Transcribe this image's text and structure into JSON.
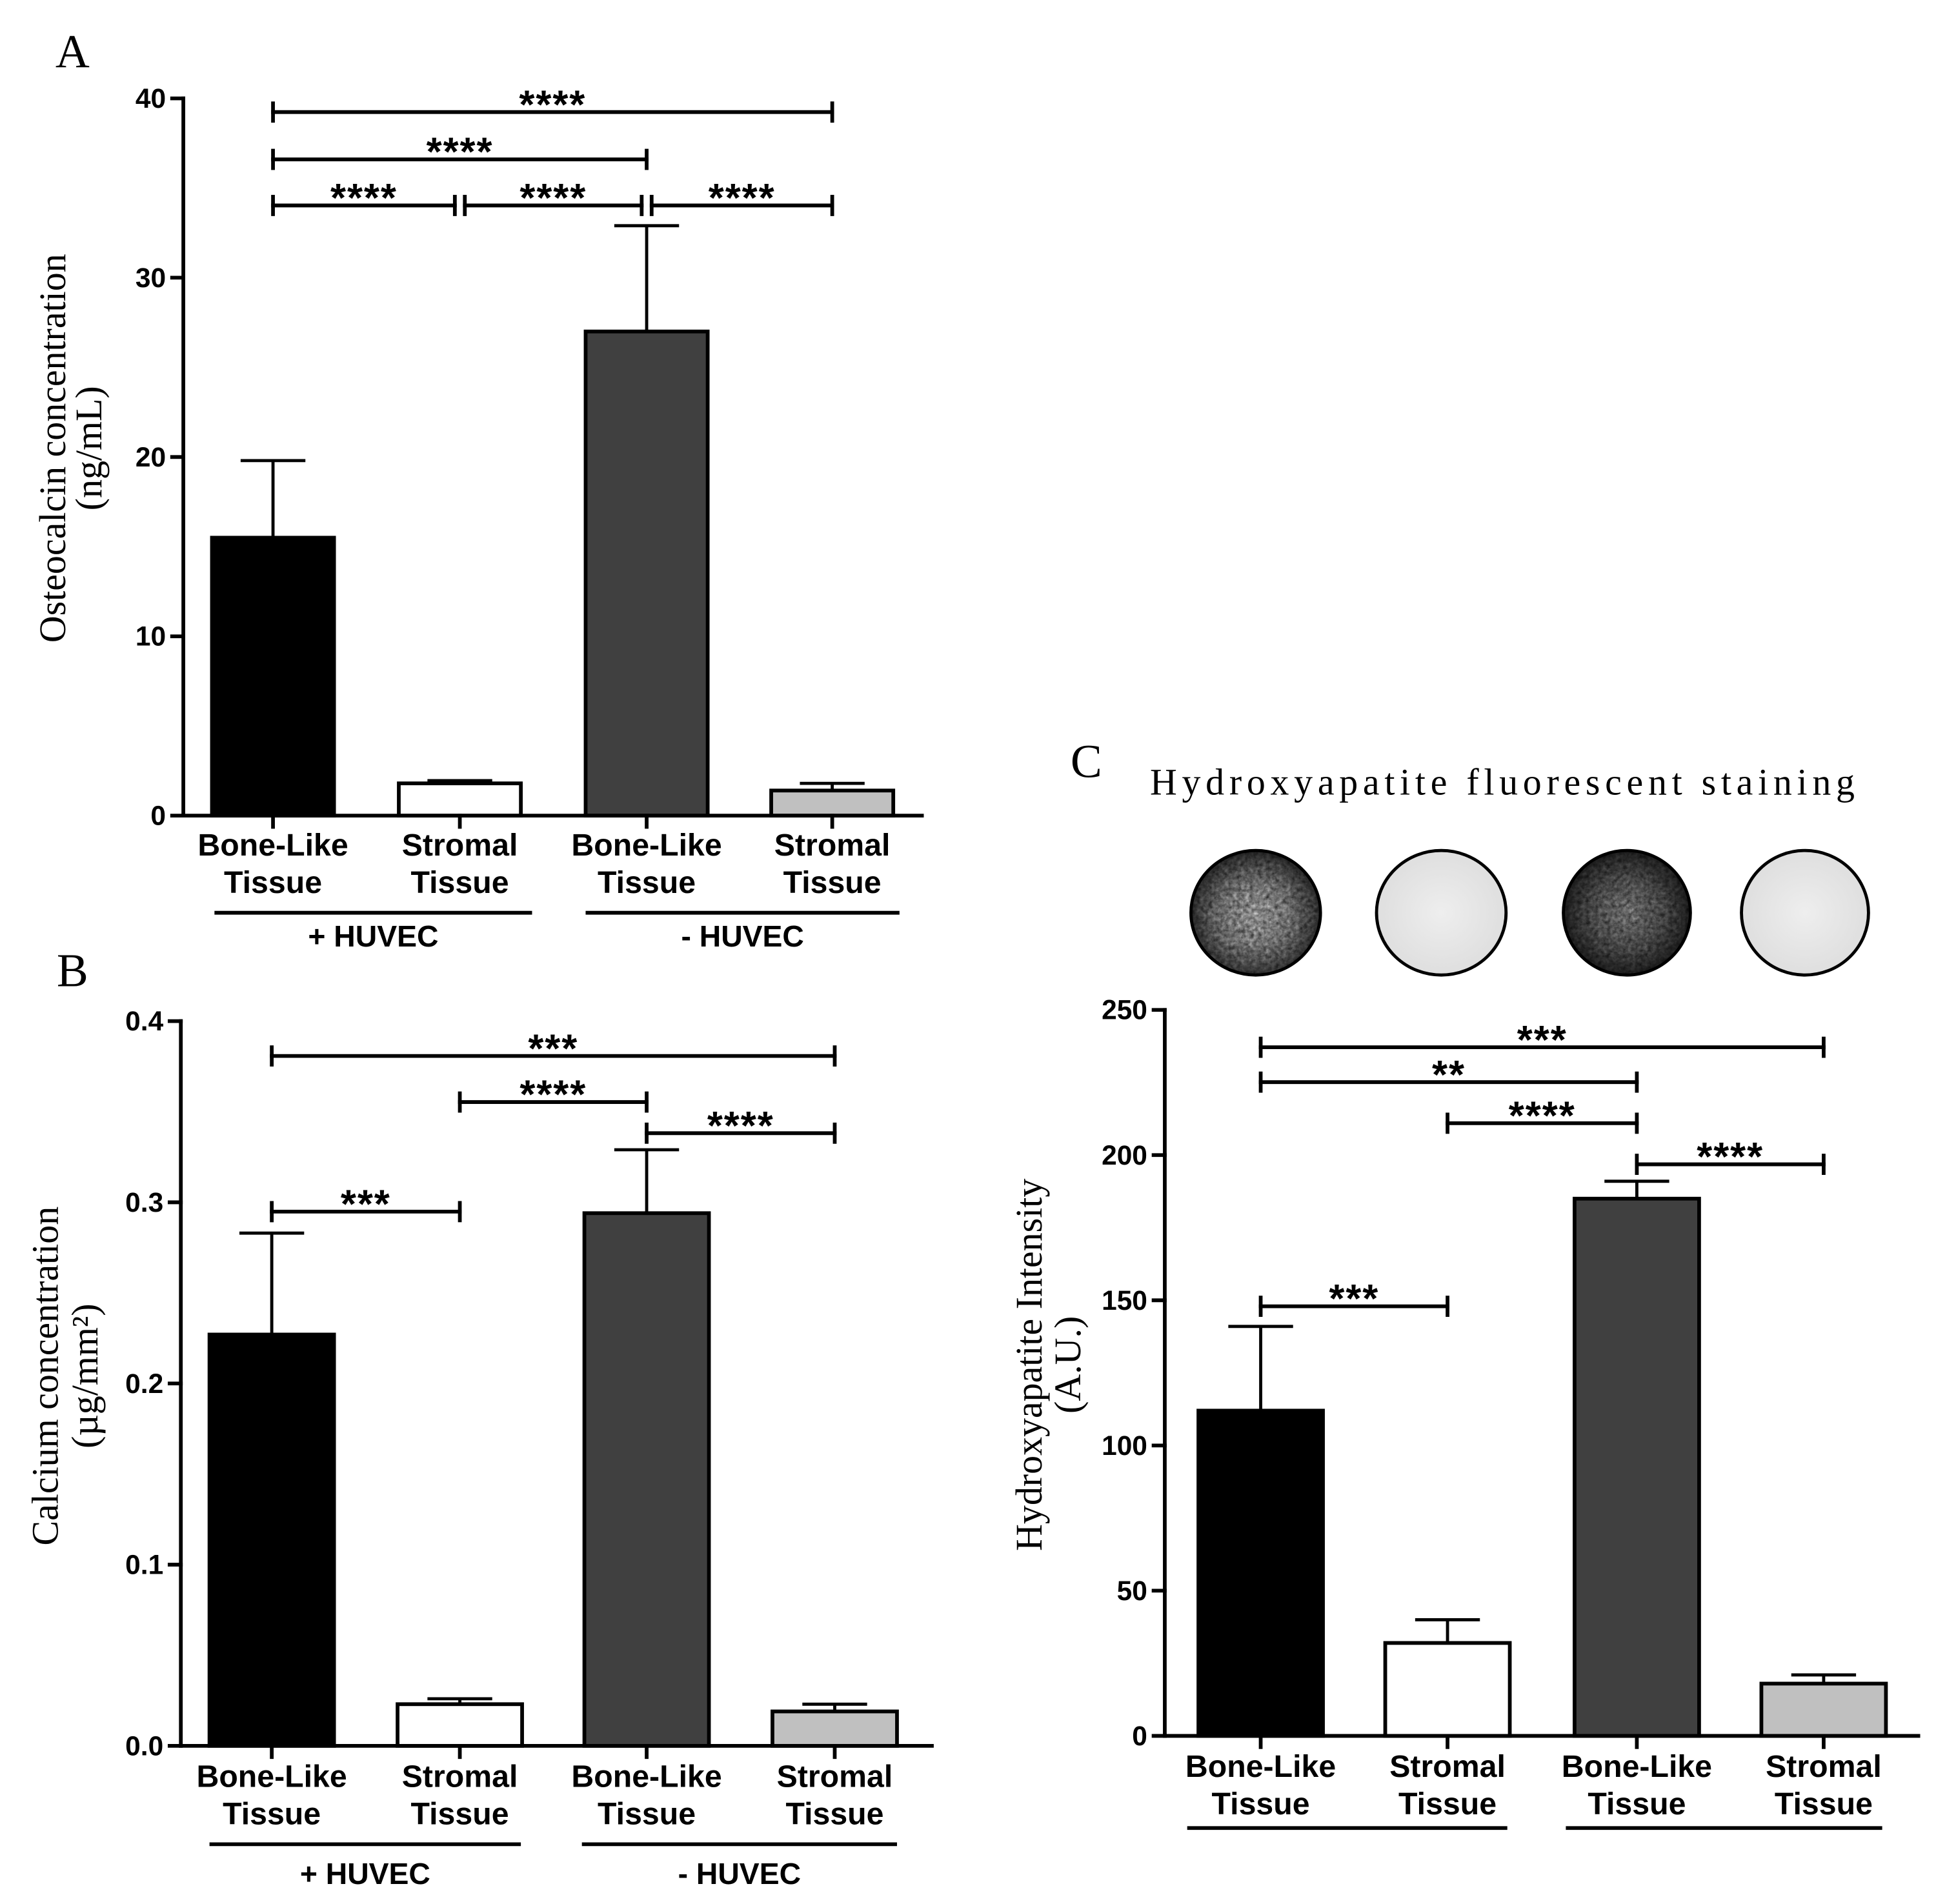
{
  "chart_data": [
    {
      "panel": "A",
      "type": "bar",
      "ylabel": [
        "Osteocalcin concentration",
        "(ng/mL)"
      ],
      "ylim": [
        0,
        40
      ],
      "yticks": [
        0,
        10,
        20,
        30,
        40
      ],
      "ytick_labels": [
        "0",
        "10",
        "20",
        "30",
        "40"
      ],
      "categories": [
        [
          "Bone-Like",
          "Tissue"
        ],
        [
          "Stromal",
          "Tissue"
        ],
        [
          "Bone-Like",
          "Tissue"
        ],
        [
          "Stromal",
          "Tissue"
        ]
      ],
      "values": [
        15.5,
        1.8,
        27.0,
        1.4
      ],
      "errors": [
        4.3,
        0.15,
        5.9,
        0.4
      ],
      "colors": [
        "#000000",
        "#ffffff",
        "#404040",
        "#c0c0c0"
      ],
      "groups": [
        {
          "label": "+ HUVEC",
          "bars": [
            0,
            1
          ]
        },
        {
          "label": "- HUVEC",
          "bars": [
            2,
            3
          ]
        }
      ],
      "significance": [
        {
          "from": 0,
          "to": 3,
          "label": "****"
        },
        {
          "from": 0,
          "to": 2,
          "label": "****"
        },
        {
          "from": 0,
          "to": 1,
          "label": "****"
        },
        {
          "from": 1,
          "to": 2,
          "label": "****"
        },
        {
          "from": 2,
          "to": 3,
          "label": "****"
        }
      ]
    },
    {
      "panel": "B",
      "type": "bar",
      "ylabel": [
        "Calcium concentration",
        "(µg/mm²)"
      ],
      "ylim": [
        0,
        0.4
      ],
      "yticks": [
        0,
        0.1,
        0.2,
        0.3,
        0.4
      ],
      "ytick_labels": [
        "0.0",
        "0.1",
        "0.2",
        "0.3",
        "0.4"
      ],
      "categories": [
        [
          "Bone-Like",
          "Tissue"
        ],
        [
          "Stromal",
          "Tissue"
        ],
        [
          "Bone-Like",
          "Tissue"
        ],
        [
          "Stromal",
          "Tissue"
        ]
      ],
      "values": [
        0.227,
        0.023,
        0.294,
        0.019
      ],
      "errors": [
        0.056,
        0.003,
        0.035,
        0.004
      ],
      "colors": [
        "#000000",
        "#ffffff",
        "#404040",
        "#c0c0c0"
      ],
      "groups": [
        {
          "label": "+ HUVEC",
          "bars": [
            0,
            1
          ]
        },
        {
          "label": "- HUVEC",
          "bars": [
            2,
            3
          ]
        }
      ],
      "significance": [
        {
          "from": 0,
          "to": 3,
          "label": "***"
        },
        {
          "from": 1,
          "to": 2,
          "label": "****"
        },
        {
          "from": 2,
          "to": 3,
          "label": "****"
        },
        {
          "from": 0,
          "to": 1,
          "label": "***"
        }
      ]
    },
    {
      "panel": "C",
      "type": "bar",
      "title": "Hydroxyapatite fluorescent staining",
      "ylabel": [
        "Hydroxyapatite Intensity",
        "(A.U.)"
      ],
      "ylim": [
        0,
        250
      ],
      "yticks": [
        0,
        50,
        100,
        150,
        200,
        250
      ],
      "ytick_labels": [
        "0",
        "50",
        "100",
        "150",
        "200",
        "250"
      ],
      "categories": [
        [
          "Bone-Like",
          "Tissue"
        ],
        [
          "Stromal",
          "Tissue"
        ],
        [
          "Bone-Like",
          "Tissue"
        ],
        [
          "Stromal",
          "Tissue"
        ]
      ],
      "values": [
        112,
        32,
        185,
        18
      ],
      "errors": [
        29,
        8,
        6,
        3
      ],
      "colors": [
        "#000000",
        "#ffffff",
        "#404040",
        "#c0c0c0"
      ],
      "groups": [
        {
          "bars": [
            0,
            1
          ]
        },
        {
          "bars": [
            2,
            3
          ]
        }
      ],
      "significance": [
        {
          "from": 0,
          "to": 3,
          "label": "***"
        },
        {
          "from": 0,
          "to": 2,
          "label": "**"
        },
        {
          "from": 1,
          "to": 2,
          "label": "****"
        },
        {
          "from": 2,
          "to": 3,
          "label": "****"
        },
        {
          "from": 0,
          "to": 1,
          "label": "***"
        }
      ]
    }
  ]
}
